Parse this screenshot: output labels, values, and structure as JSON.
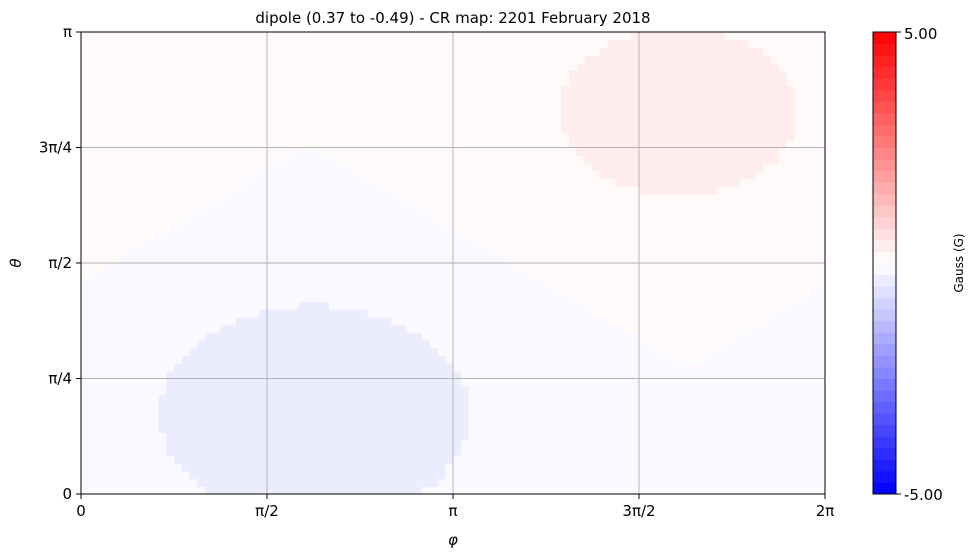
{
  "chart_data": {
    "type": "heatmap",
    "title": "dipole (0.37 to -0.49) - CR map: 2201 February 2018",
    "xlabel": "φ",
    "ylabel": "θ",
    "xlim": [
      0,
      6.2832
    ],
    "ylim": [
      0,
      3.1416
    ],
    "x_ticks": [
      {
        "value": 0,
        "label": "0"
      },
      {
        "value": 1.5708,
        "label": "π/2"
      },
      {
        "value": 3.1416,
        "label": "π"
      },
      {
        "value": 4.7124,
        "label": "3π/2"
      },
      {
        "value": 6.2832,
        "label": "2π"
      }
    ],
    "y_ticks": [
      {
        "value": 0,
        "label": "0"
      },
      {
        "value": 0.7854,
        "label": "π/4"
      },
      {
        "value": 1.5708,
        "label": "π/2"
      },
      {
        "value": 2.3562,
        "label": "3π/4"
      },
      {
        "value": 3.1416,
        "label": "π"
      }
    ],
    "grid": true,
    "field": {
      "model": "dipole",
      "max": 0.37,
      "min": -0.49,
      "max_location": {
        "phi": 5.05,
        "theta": 2.6
      },
      "min_location": {
        "phi": 1.97,
        "theta": 0.55
      }
    },
    "colorbar": {
      "label": "Gauss (G)",
      "min": -5.0,
      "max": 5.0,
      "min_label": "-5.00",
      "max_label": "5.00",
      "colormap": "bwr",
      "low_color": "#0000ff",
      "mid_color": "#ffffff",
      "high_color": "#ff0000",
      "levels": 40
    }
  }
}
